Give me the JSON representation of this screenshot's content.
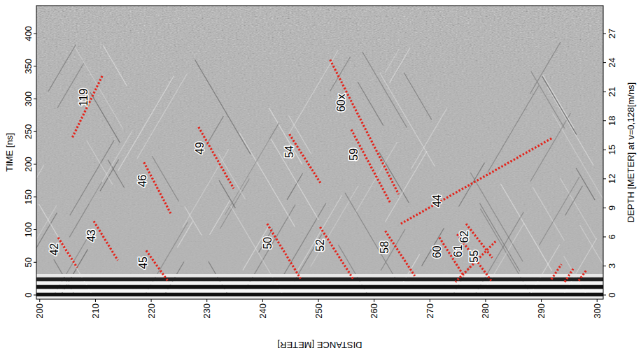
{
  "chart_data": {
    "type": "line",
    "x_label": "DISTANCE [METER]",
    "y_label": "TIME [ns]",
    "y2_label": "DEPTH [METER] at v=0,128[m/ns]",
    "xlim": [
      199.4,
      301.1
    ],
    "ylim": [
      -6.4,
      442.8
    ],
    "y2lim": [
      -0.43,
      29.89
    ],
    "xticks": [
      200,
      210,
      220,
      230,
      240,
      250,
      260,
      270,
      280,
      290,
      300
    ],
    "yticks": [
      0,
      50,
      100,
      150,
      200,
      250,
      300,
      350,
      400
    ],
    "y2ticks": [
      0,
      3,
      6,
      9,
      12,
      15,
      18,
      21,
      24,
      27
    ],
    "color": "#e3241b",
    "line_style": "dotted",
    "series": [
      {
        "name": "42",
        "x": [
          203.3,
          206.7
        ],
        "values": [
          88,
          42
        ]
      },
      {
        "name": "119",
        "x": [
          211.2,
          205.8
        ],
        "values": [
          335,
          240
        ]
      },
      {
        "name": "43",
        "x": [
          209.7,
          214.0
        ],
        "values": [
          113,
          53
        ]
      },
      {
        "name": "46",
        "x": [
          218.7,
          223.6
        ],
        "values": [
          203,
          123
        ]
      },
      {
        "name": "45",
        "x": [
          219.1,
          223.1
        ],
        "values": [
          68,
          20
        ]
      },
      {
        "name": "49",
        "x": [
          228.5,
          234.8
        ],
        "values": [
          257,
          163
        ]
      },
      {
        "name": "50",
        "x": [
          240.8,
          246.8
        ],
        "values": [
          109,
          25
        ]
      },
      {
        "name": "54",
        "x": [
          244.8,
          250.4
        ],
        "values": [
          246,
          171
        ]
      },
      {
        "name": "52",
        "x": [
          250.3,
          256.2
        ],
        "values": [
          104,
          25
        ]
      },
      {
        "name": "60x",
        "x": [
          252.1,
          264.4
        ],
        "values": [
          360,
          154
        ]
      },
      {
        "name": "59",
        "x": [
          255.9,
          262.9
        ],
        "values": [
          253,
          141
        ]
      },
      {
        "name": "58",
        "x": [
          262.0,
          267.3
        ],
        "values": [
          98,
          29
        ]
      },
      {
        "name": "44",
        "x": [
          264.8,
          291.9
        ],
        "values": [
          109,
          240
        ]
      },
      {
        "name": "60",
        "x": [
          271.7,
          276.1
        ],
        "values": [
          88,
          29
        ]
      },
      {
        "name": "62",
        "x": [
          276.5,
          281.2
        ],
        "values": [
          109,
          57
        ]
      },
      {
        "name": "55",
        "x": [
          281.8,
          274.6
        ],
        "values": [
          82,
          20
        ]
      },
      {
        "name": "61",
        "x": [
          274.9,
          281.0
        ],
        "values": [
          93,
          22
        ]
      },
      {
        "name": null,
        "x": [
          291.8,
          293.6
        ],
        "values": [
          24,
          47
        ]
      },
      {
        "name": null,
        "x": [
          294.2,
          295.7
        ],
        "values": [
          20,
          40
        ]
      },
      {
        "name": null,
        "x": [
          296.7,
          298.0
        ],
        "values": [
          22,
          37
        ]
      }
    ]
  }
}
